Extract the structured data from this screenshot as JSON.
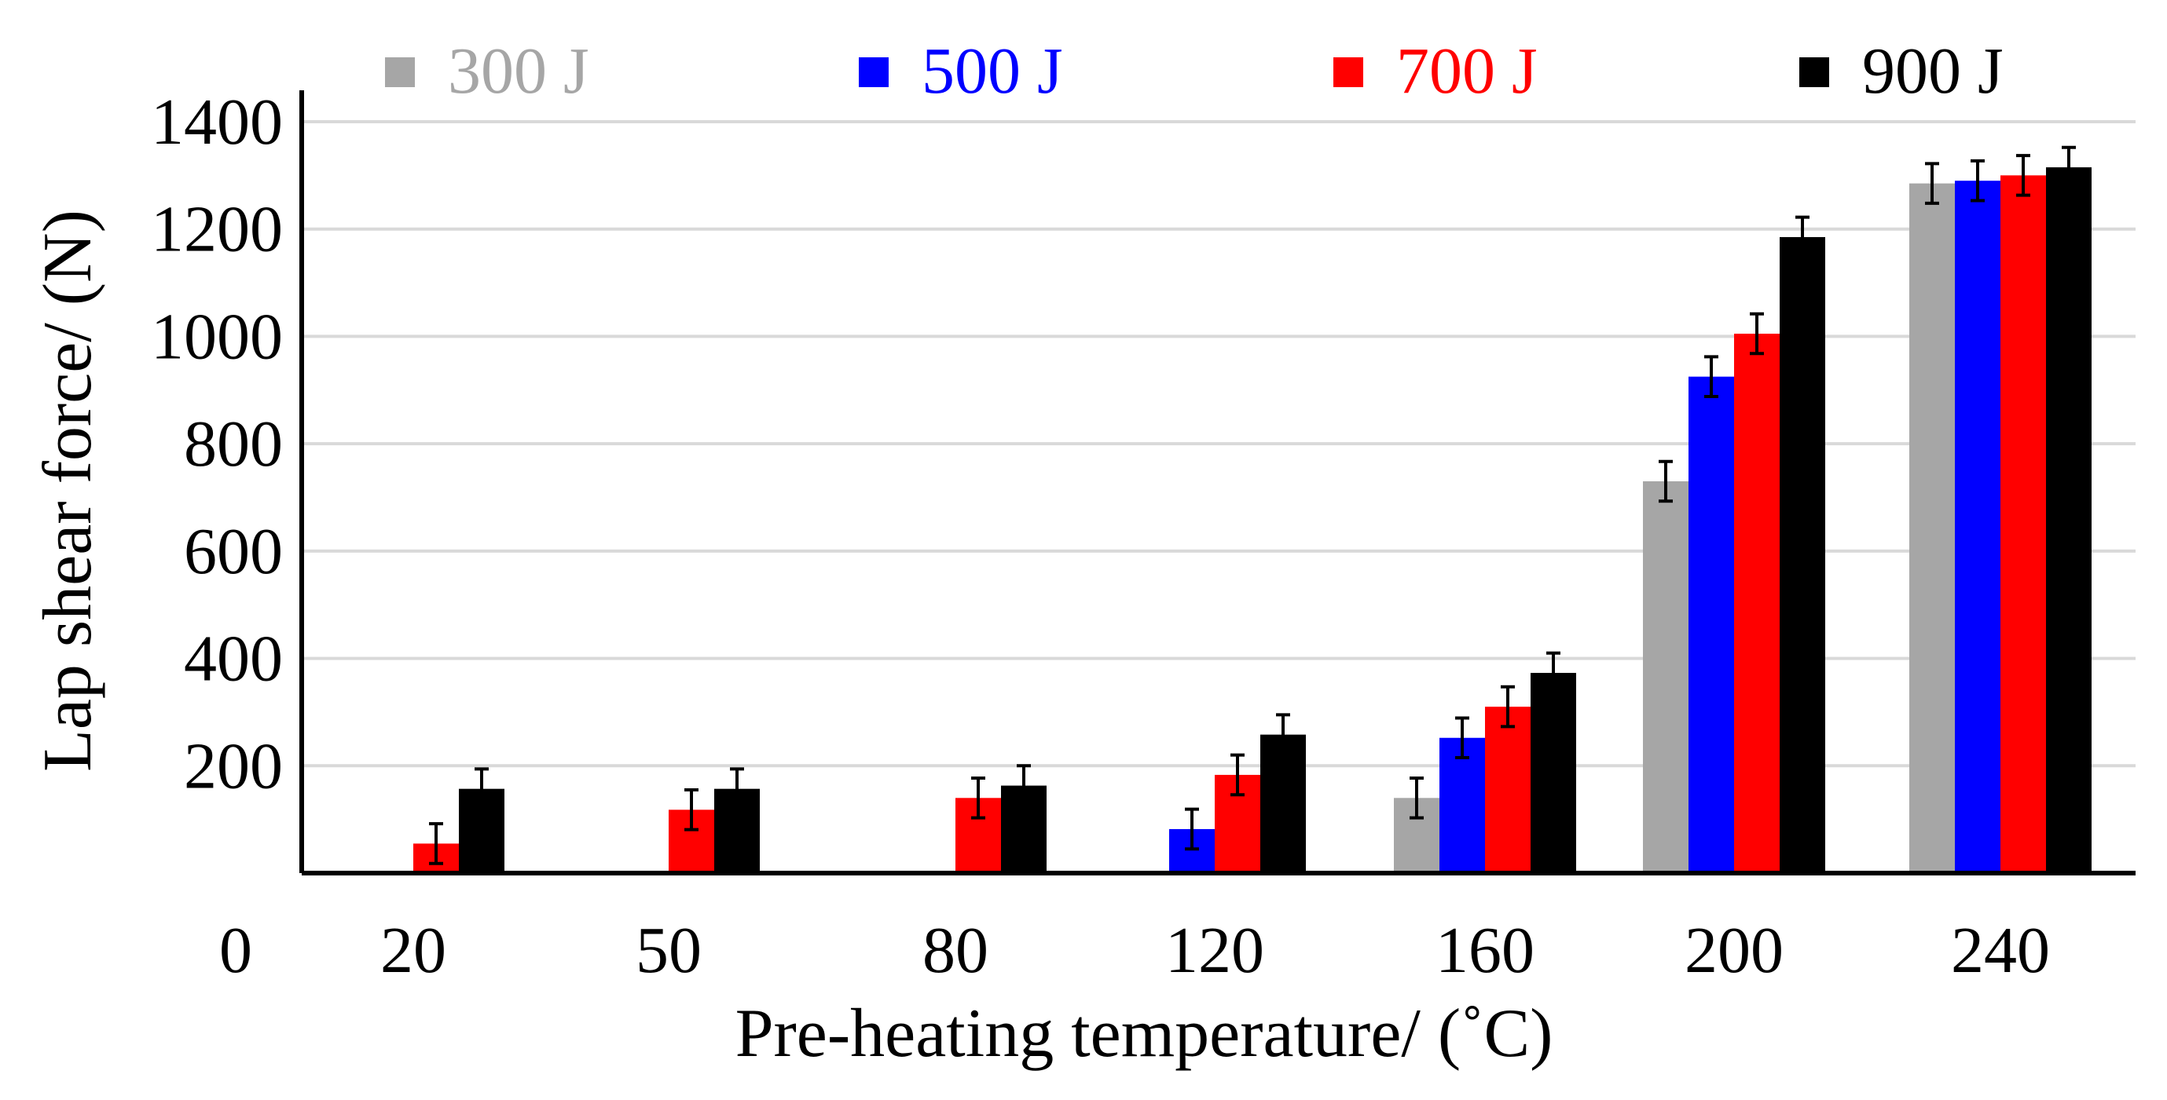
{
  "chart_data": {
    "type": "bar",
    "title": "",
    "xlabel": "Pre-heating temperature/ (˚C)",
    "ylabel": "Lap shear force/ (N)",
    "ylim": [
      0,
      1400
    ],
    "yticks": [
      200,
      400,
      600,
      800,
      1000,
      1200,
      1400
    ],
    "y_zero_label": "0",
    "grid": true,
    "legend_position": "top",
    "categories": [
      "20",
      "50",
      "80",
      "120",
      "160",
      "200",
      "240"
    ],
    "series": [
      {
        "name": "300 J",
        "color": "#a6a6a6",
        "values": [
          null,
          null,
          null,
          null,
          140,
          730,
          1285
        ],
        "errors": [
          null,
          null,
          null,
          null,
          37,
          37,
          37
        ]
      },
      {
        "name": "500 J",
        "color": "#0000ff",
        "values": [
          null,
          null,
          null,
          82,
          252,
          925,
          1290
        ],
        "errors": [
          null,
          null,
          null,
          37,
          37,
          37,
          37
        ]
      },
      {
        "name": "700 J",
        "color": "#ff0000",
        "values": [
          55,
          118,
          140,
          183,
          310,
          1005,
          1300
        ],
        "errors": [
          37,
          37,
          37,
          37,
          37,
          37,
          37
        ]
      },
      {
        "name": "900 J",
        "color": "#000000",
        "values": [
          157,
          157,
          163,
          258,
          373,
          1185,
          1315
        ],
        "errors": [
          37,
          37,
          37,
          37,
          37,
          37,
          37
        ]
      }
    ]
  }
}
